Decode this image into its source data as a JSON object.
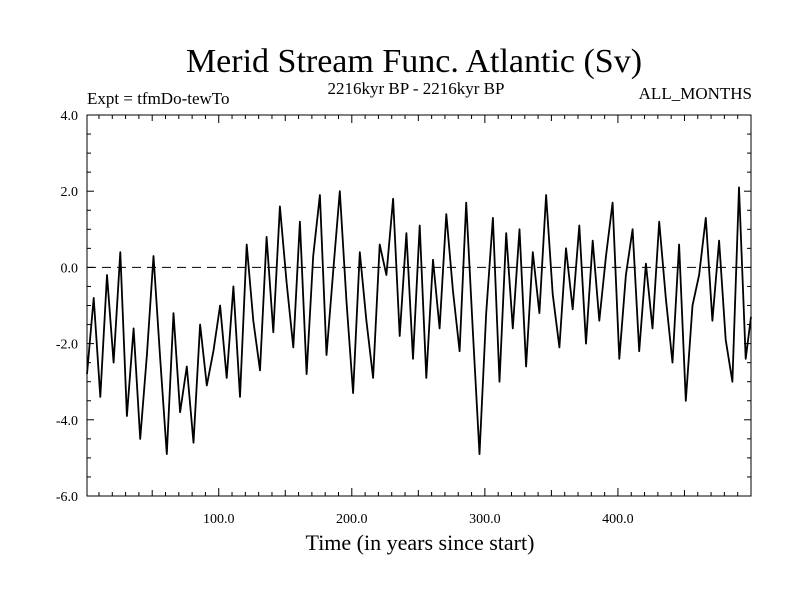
{
  "chart_data": {
    "type": "line",
    "title": "Merid Stream Func. Atlantic (Sv)",
    "subtitle_left": "Expt = tfmDo-tewTo",
    "subtitle_center": "2216kyr BP - 2216kyr BP",
    "subtitle_right": "ALL_MONTHS",
    "xlabel": "Time (in years since start)",
    "ylabel": "",
    "xlim": [
      1,
      500
    ],
    "ylim": [
      -6.0,
      4.0
    ],
    "xticks": [
      {
        "value": 100,
        "label": "100.0"
      },
      {
        "value": 200,
        "label": "200.0"
      },
      {
        "value": 300,
        "label": "300.0"
      },
      {
        "value": 400,
        "label": "400.0"
      }
    ],
    "yticks": [
      {
        "value": 4,
        "label": "4.0"
      },
      {
        "value": 2,
        "label": "2.0"
      },
      {
        "value": 0,
        "label": "0.0"
      },
      {
        "value": -2,
        "label": "-2.0"
      },
      {
        "value": -4,
        "label": "-4.0"
      },
      {
        "value": -6,
        "label": "-6.0"
      }
    ],
    "reference_line": {
      "y": 0,
      "style": "dashed"
    },
    "series": [
      {
        "name": "Merid Stream Func.",
        "x": [
          1,
          6,
          11,
          16,
          21,
          26,
          31,
          36,
          41,
          46,
          51,
          56,
          61,
          66,
          71,
          76,
          81,
          86,
          91,
          96,
          101,
          106,
          111,
          116,
          121,
          126,
          131,
          136,
          141,
          146,
          151,
          156,
          161,
          166,
          171,
          176,
          181,
          186,
          191,
          196,
          201,
          206,
          211,
          216,
          221,
          226,
          231,
          236,
          241,
          246,
          251,
          256,
          261,
          266,
          271,
          276,
          281,
          286,
          291,
          296,
          301,
          306,
          311,
          316,
          321,
          326,
          331,
          336,
          341,
          346,
          351,
          356,
          361,
          366,
          371,
          376,
          381,
          386,
          391,
          396,
          401,
          406,
          411,
          416,
          421,
          426,
          431,
          436,
          441,
          446,
          451,
          456,
          461,
          466,
          471,
          476,
          481,
          486,
          491,
          496,
          500
        ],
        "values": [
          -2.8,
          -0.8,
          -3.4,
          -0.2,
          -2.5,
          0.4,
          -3.9,
          -1.6,
          -4.5,
          -2.3,
          0.3,
          -2.4,
          -4.9,
          -1.2,
          -3.8,
          -2.6,
          -4.6,
          -1.5,
          -3.1,
          -2.2,
          -1.0,
          -2.9,
          -0.5,
          -3.4,
          0.6,
          -1.4,
          -2.7,
          0.8,
          -1.7,
          1.6,
          -0.4,
          -2.1,
          1.2,
          -2.8,
          0.3,
          1.9,
          -2.3,
          -0.1,
          2.0,
          -0.9,
          -3.3,
          0.4,
          -1.4,
          -2.9,
          0.6,
          -0.2,
          1.8,
          -1.8,
          0.9,
          -2.4,
          1.1,
          -2.9,
          0.2,
          -1.6,
          1.4,
          -0.6,
          -2.2,
          1.7,
          -1.7,
          -4.9,
          -1.2,
          1.3,
          -3.0,
          0.9,
          -1.6,
          1.0,
          -2.6,
          0.4,
          -1.2,
          1.9,
          -0.7,
          -2.1,
          0.5,
          -1.1,
          1.1,
          -2.0,
          0.7,
          -1.4,
          0.3,
          1.7,
          -2.4,
          -0.2,
          1.0,
          -2.2,
          0.1,
          -1.6,
          1.2,
          -0.8,
          -2.5,
          0.6,
          -3.5,
          -1.0,
          -0.2,
          1.3,
          -1.4,
          0.7,
          -1.9,
          -3.0,
          2.1,
          -2.4,
          -1.3
        ]
      }
    ]
  }
}
